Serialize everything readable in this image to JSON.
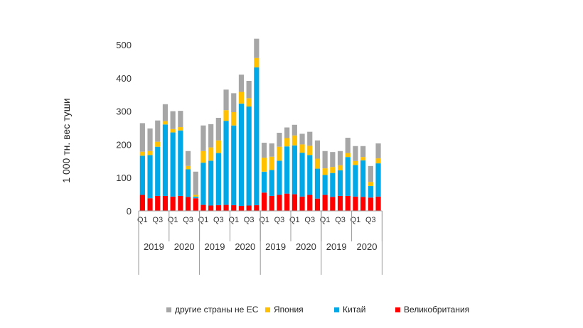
{
  "chart_data": {
    "type": "bar",
    "stacked": true,
    "ylabel": "1 000 тн. вес туши",
    "ylim": [
      0,
      500
    ],
    "yticks": [
      0,
      100,
      200,
      300,
      400,
      500
    ],
    "grid": false,
    "legend_position": "bottom",
    "quarter_labels": [
      "Q1",
      "",
      "Q3",
      ""
    ],
    "years": [
      "2019",
      "2020"
    ],
    "categories": [
      "2019 Q1",
      "2019 Q2",
      "2019 Q3",
      "2019 Q4",
      "2020 Q1",
      "2020 Q2",
      "2020 Q3",
      "2020 Q4",
      "2019 Q1",
      "2019 Q2",
      "2019 Q3",
      "2019 Q4",
      "2020 Q1",
      "2020 Q2",
      "2020 Q3",
      "2020 Q4",
      "2019 Q1",
      "2019 Q2",
      "2019 Q3",
      "2019 Q4",
      "2020 Q1",
      "2020 Q2",
      "2020 Q3",
      "2020 Q4",
      "2019 Q1",
      "2019 Q2",
      "2019 Q3",
      "2019 Q4",
      "2020 Q1",
      "2020 Q2",
      "2020 Q3",
      "2020 Q4"
    ],
    "series": [
      {
        "name": "Великобритания",
        "color": "#ff0000",
        "values": [
          48,
          38,
          45,
          45,
          43,
          45,
          42,
          38,
          18,
          16,
          17,
          18,
          17,
          15,
          16,
          17,
          55,
          45,
          48,
          52,
          50,
          43,
          48,
          37,
          48,
          42,
          45,
          45,
          43,
          42,
          40,
          43
        ]
      },
      {
        "name": "Китай",
        "color": "#00a8e8",
        "values": [
          118,
          130,
          148,
          215,
          193,
          197,
          83,
          5,
          127,
          135,
          157,
          253,
          240,
          308,
          298,
          415,
          63,
          78,
          103,
          142,
          147,
          132,
          120,
          90,
          60,
          72,
          77,
          117,
          95,
          110,
          35,
          100
        ]
      },
      {
        "name": "Япония",
        "color": "#ffc000",
        "values": [
          12,
          12,
          15,
          10,
          10,
          10,
          10,
          5,
          35,
          40,
          38,
          32,
          40,
          35,
          25,
          28,
          42,
          40,
          42,
          25,
          30,
          25,
          28,
          30,
          20,
          18,
          15,
          12,
          12,
          10,
          12,
          15
        ]
      },
      {
        "name": "другие страны не ЕС",
        "color": "#a6a6a6",
        "values": [
          86,
          68,
          64,
          51,
          54,
          49,
          45,
          70,
          77,
          70,
          68,
          62,
          57,
          52,
          52,
          58,
          45,
          40,
          42,
          32,
          32,
          32,
          42,
          55,
          52,
          45,
          43,
          46,
          45,
          33,
          48,
          45
        ]
      }
    ]
  }
}
